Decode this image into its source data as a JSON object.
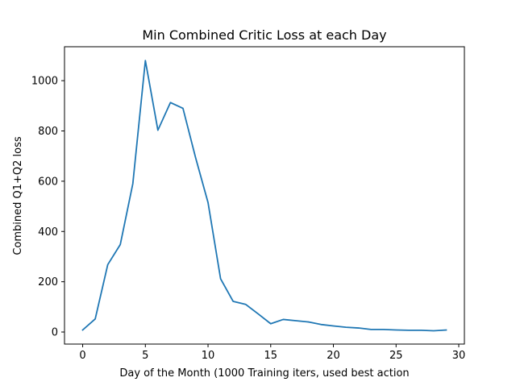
{
  "chart_data": {
    "type": "line",
    "title": "Min Combined Critic Loss at each Day",
    "xlabel": "Day of the Month (1000 Training iters, used best action",
    "ylabel": "Combined Q1+Q2 loss",
    "xlim": [
      -1.45,
      30.45
    ],
    "ylim": [
      -48,
      1135
    ],
    "xticks": [
      0,
      5,
      10,
      15,
      20,
      25,
      30
    ],
    "yticks": [
      0,
      200,
      400,
      600,
      800,
      1000
    ],
    "grid": false,
    "legend": "none",
    "series": [
      {
        "color": "#1f77b4",
        "x": [
          0,
          1,
          2,
          3,
          4,
          5,
          6,
          7,
          8,
          9,
          10,
          11,
          12,
          13,
          14,
          15,
          16,
          17,
          18,
          19,
          20,
          21,
          22,
          23,
          24,
          25,
          26,
          27,
          28,
          29
        ],
        "y": [
          8,
          52,
          268,
          348,
          590,
          1080,
          803,
          913,
          890,
          695,
          515,
          212,
          122,
          110,
          72,
          33,
          50,
          45,
          40,
          30,
          24,
          19,
          16,
          10,
          10,
          8,
          7,
          7,
          5,
          8
        ]
      }
    ]
  }
}
